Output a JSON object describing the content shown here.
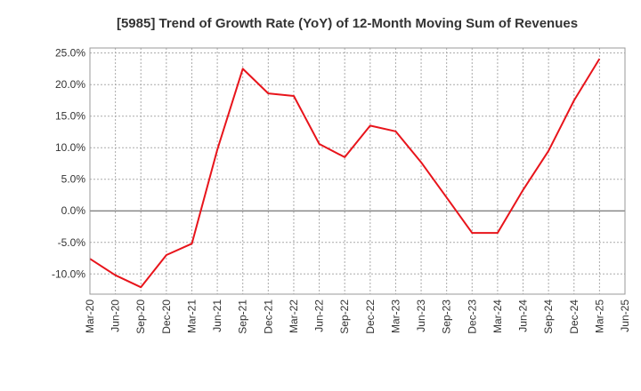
{
  "chart_data": {
    "type": "line",
    "title": "[5985]  Trend of Growth Rate (YoY) of 12-Month Moving Sum of Revenues",
    "xlabel": "",
    "ylabel": "",
    "categories": [
      "Mar-20",
      "Jun-20",
      "Sep-20",
      "Dec-20",
      "Mar-21",
      "Jun-21",
      "Sep-21",
      "Dec-21",
      "Mar-22",
      "Jun-22",
      "Sep-22",
      "Dec-22",
      "Mar-23",
      "Jun-23",
      "Sep-23",
      "Dec-23",
      "Mar-24",
      "Jun-24",
      "Sep-24",
      "Dec-24",
      "Mar-25",
      "Jun-25"
    ],
    "series": [
      {
        "color": "#e8141b",
        "values": [
          -7.6,
          -10.2,
          -12.1,
          -7.0,
          -5.2,
          9.7,
          22.5,
          18.6,
          18.2,
          10.6,
          8.5,
          13.5,
          12.6,
          7.7,
          2.1,
          -3.5,
          -3.5,
          3.3,
          9.5,
          17.5,
          24.1,
          null
        ]
      }
    ],
    "yticks": [
      -10,
      -5,
      0,
      5,
      10,
      15,
      20,
      25
    ],
    "ytick_labels": [
      "-10.0%",
      "-5.0%",
      "0.0%",
      "5.0%",
      "10.0%",
      "15.0%",
      "20.0%",
      "25.0%"
    ],
    "ylim": [
      -13.2,
      25.8
    ],
    "grid": true,
    "legend": "none"
  }
}
